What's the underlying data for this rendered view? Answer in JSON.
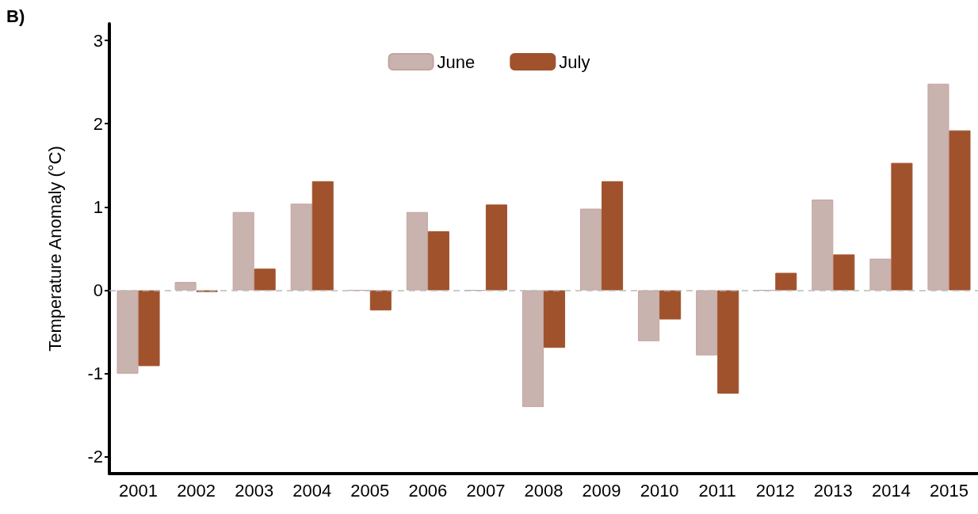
{
  "chart_data": {
    "type": "bar",
    "ylabel": "Temperature Anomaly (°C)",
    "annotations": [
      "B)"
    ],
    "categories": [
      "2001",
      "2002",
      "2003",
      "2004",
      "2005",
      "2006",
      "2007",
      "2008",
      "2009",
      "2010",
      "2011",
      "2012",
      "2013",
      "2014",
      "2015"
    ],
    "series": [
      {
        "name": "June",
        "color": "#c9b3ae",
        "values": [
          -1.0,
          0.1,
          0.94,
          1.04,
          0,
          0.94,
          0,
          -1.4,
          0.98,
          -0.61,
          -0.78,
          0,
          1.09,
          0.38,
          2.48
        ]
      },
      {
        "name": "July",
        "color": "#a0522d",
        "values": [
          -0.91,
          -0.02,
          0.26,
          1.31,
          -0.24,
          0.71,
          1.03,
          -0.69,
          1.31,
          -0.35,
          -1.24,
          0.21,
          0.43,
          1.53,
          1.92
        ]
      }
    ],
    "ylim": [
      -2.2,
      3.2
    ],
    "yticks": [
      -2,
      -1,
      0,
      1,
      2,
      3
    ],
    "grid": false,
    "legend": "top",
    "ref_lines": [
      {
        "axis": "y",
        "value": 0,
        "label": null,
        "color": "#bbbbbb",
        "line_style": "dashed"
      }
    ]
  }
}
